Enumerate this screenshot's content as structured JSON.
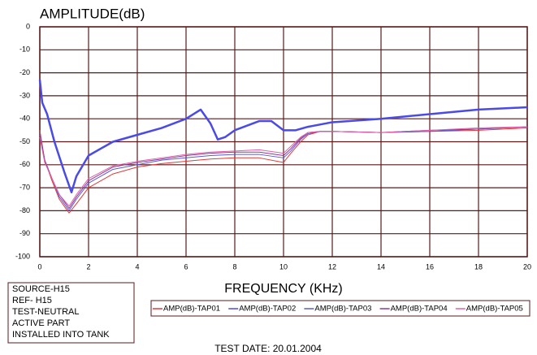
{
  "chart_data": {
    "type": "line",
    "title": "AMPLITUDE(dB)",
    "x_label": "FREQUENCY (KHz)",
    "footer": "TEST DATE: 20.01.2004",
    "info_box": [
      "SOURCE-H15",
      "REF- H15",
      "TEST-NEUTRAL",
      "ACTIVE PART",
      "INSTALLED INTO TANK"
    ],
    "xlim": [
      0,
      20
    ],
    "xticks": [
      0,
      2,
      4,
      6,
      8,
      10,
      12,
      14,
      16,
      18,
      20
    ],
    "ylim": [
      -100,
      0
    ],
    "yticks": [
      0,
      -10,
      -20,
      -30,
      -40,
      -50,
      -60,
      -70,
      -80,
      -90,
      -100
    ],
    "grid": true,
    "series": [
      {
        "name": "AMP(dB)-TAP01",
        "color": "#e03a3a",
        "x": [
          0,
          0.2,
          0.5,
          0.8,
          1.2,
          1.5,
          2,
          3,
          4,
          5,
          6,
          7,
          8,
          9,
          10,
          10.3,
          10.7,
          11,
          11.5,
          12,
          14,
          16,
          18,
          20
        ],
        "values": [
          -45,
          -58,
          -67,
          -75,
          -81,
          -77,
          -70,
          -64,
          -61,
          -59.5,
          -58.5,
          -57.5,
          -57,
          -57,
          -59,
          -55,
          -50,
          -47,
          -45.5,
          -45.5,
          -46,
          -45.5,
          -45,
          -44
        ]
      },
      {
        "name": "AMP(dB)-TAP02",
        "color": "#4a4ae6",
        "x": [
          0,
          0.1,
          0.3,
          0.6,
          1.0,
          1.3,
          1.5,
          2,
          3,
          4,
          5,
          6,
          6.6,
          7,
          7.3,
          7.6,
          8,
          9,
          9.5,
          10,
          10.5,
          11,
          12,
          14,
          16,
          18,
          20
        ],
        "values": [
          -23,
          -33,
          -38,
          -50,
          -63,
          -72,
          -65,
          -56,
          -50,
          -47,
          -44,
          -40,
          -36,
          -42,
          -49,
          -48,
          -45,
          -41,
          -41,
          -45,
          -45,
          -43.5,
          -41.5,
          -40,
          -38,
          -36,
          -35
        ]
      },
      {
        "name": "AMP(dB)-TAP03",
        "color": "#5a5ad0",
        "x": [
          0,
          0.2,
          0.5,
          0.8,
          1.2,
          1.5,
          2,
          3,
          4,
          5,
          6,
          7,
          8,
          9,
          10,
          10.3,
          10.7,
          11,
          11.5,
          12,
          14,
          16,
          18,
          20
        ],
        "values": [
          -46,
          -58,
          -66,
          -74,
          -80,
          -75,
          -68,
          -62,
          -60,
          -58,
          -57,
          -56,
          -55.5,
          -55.5,
          -57,
          -54,
          -49,
          -46.5,
          -45.5,
          -45.5,
          -46,
          -45.5,
          -44.5,
          -43.5
        ]
      },
      {
        "name": "AMP(dB)-TAP04",
        "color": "#8a3a9a",
        "x": [
          0,
          0.2,
          0.5,
          0.8,
          1.2,
          1.5,
          2,
          3,
          4,
          5,
          6,
          7,
          8,
          9,
          10,
          10.3,
          10.7,
          11,
          11.5,
          12,
          14,
          16,
          18,
          20
        ],
        "values": [
          -47,
          -58,
          -66,
          -73,
          -79,
          -74,
          -67,
          -61,
          -59,
          -57.5,
          -56,
          -55,
          -54.5,
          -54.5,
          -56,
          -53,
          -48.5,
          -46,
          -45.5,
          -45.5,
          -46,
          -45,
          -44.5,
          -43.5
        ]
      },
      {
        "name": "AMP(dB)-TAP05",
        "color": "#e060a8",
        "x": [
          0,
          0.2,
          0.5,
          0.8,
          1.2,
          1.5,
          2,
          3,
          4,
          5,
          6,
          7,
          8,
          9,
          10,
          10.3,
          10.7,
          11,
          11.5,
          12,
          14,
          16,
          18,
          20
        ],
        "values": [
          -48,
          -59,
          -66,
          -73,
          -78,
          -73,
          -66,
          -60.5,
          -58.5,
          -57,
          -55.5,
          -54.5,
          -54,
          -53.5,
          -55,
          -52,
          -48,
          -46,
          -45.5,
          -45.5,
          -46,
          -45,
          -44,
          -43.5
        ]
      }
    ]
  }
}
